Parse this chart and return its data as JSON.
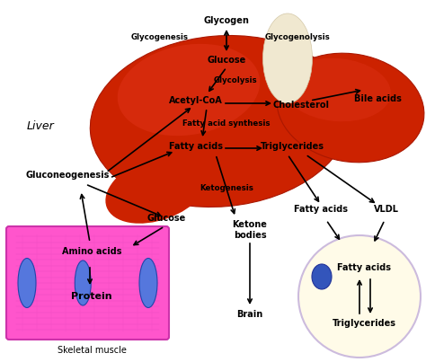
{
  "figsize": [
    4.74,
    4.03
  ],
  "dpi": 100,
  "bg_color": "#ffffff",
  "liver_color": "#cc2200",
  "liver_highlight": "#e03318",
  "liver_shadow": "#aa1800",
  "liver_right_color": "#cc2200",
  "tendon_color": "#f0e8d0",
  "muscle_color": "#ff55cc",
  "muscle_border": "#cc33aa",
  "muscle_line_color": "#dd44bb",
  "muscle_nuc_color": "#5577dd",
  "fat_cell_color": "#fffbe8",
  "fat_cell_border": "#ccbbdd",
  "fat_nuc_color": "#3355bb",
  "text_color": "#000000",
  "arrow_color": "#000000",
  "labels": {
    "glycogen": "Glycogen",
    "glycogenesis": "Glycogenesis",
    "glycogenolysis": "Glycogenolysis",
    "glucose_top": "Glucose",
    "glycolysis": "Glycolysis",
    "acetylcoa": "Acetyl-CoA",
    "cholesterol": "Cholesterol",
    "fatty_acid_synth": "Fatty acid synthesis",
    "fatty_acids_liver": "Fatty acids",
    "triglycerides_liver": "Triglycerides",
    "gluconeogenesis": "Gluconeogenesis",
    "ketogenesis": "Ketogenesis",
    "glucose_bottom": "Glucose",
    "ketone_bodies": "Ketone\nbodies",
    "brain": "Brain",
    "amino_acids": "Amino acids",
    "protein": "Protein",
    "skeletal_muscle": "Skeletal muscle",
    "fatty_acids_out": "Fatty acids",
    "vldl": "VLDL",
    "bile_acids": "Bile acids",
    "liver_label": "Liver",
    "fatty_acids_fat": "Fatty acids",
    "triglycerides_fat": "Triglycerides"
  },
  "fs": 7.0,
  "fs_small": 6.2,
  "fs_liver": 9.0
}
